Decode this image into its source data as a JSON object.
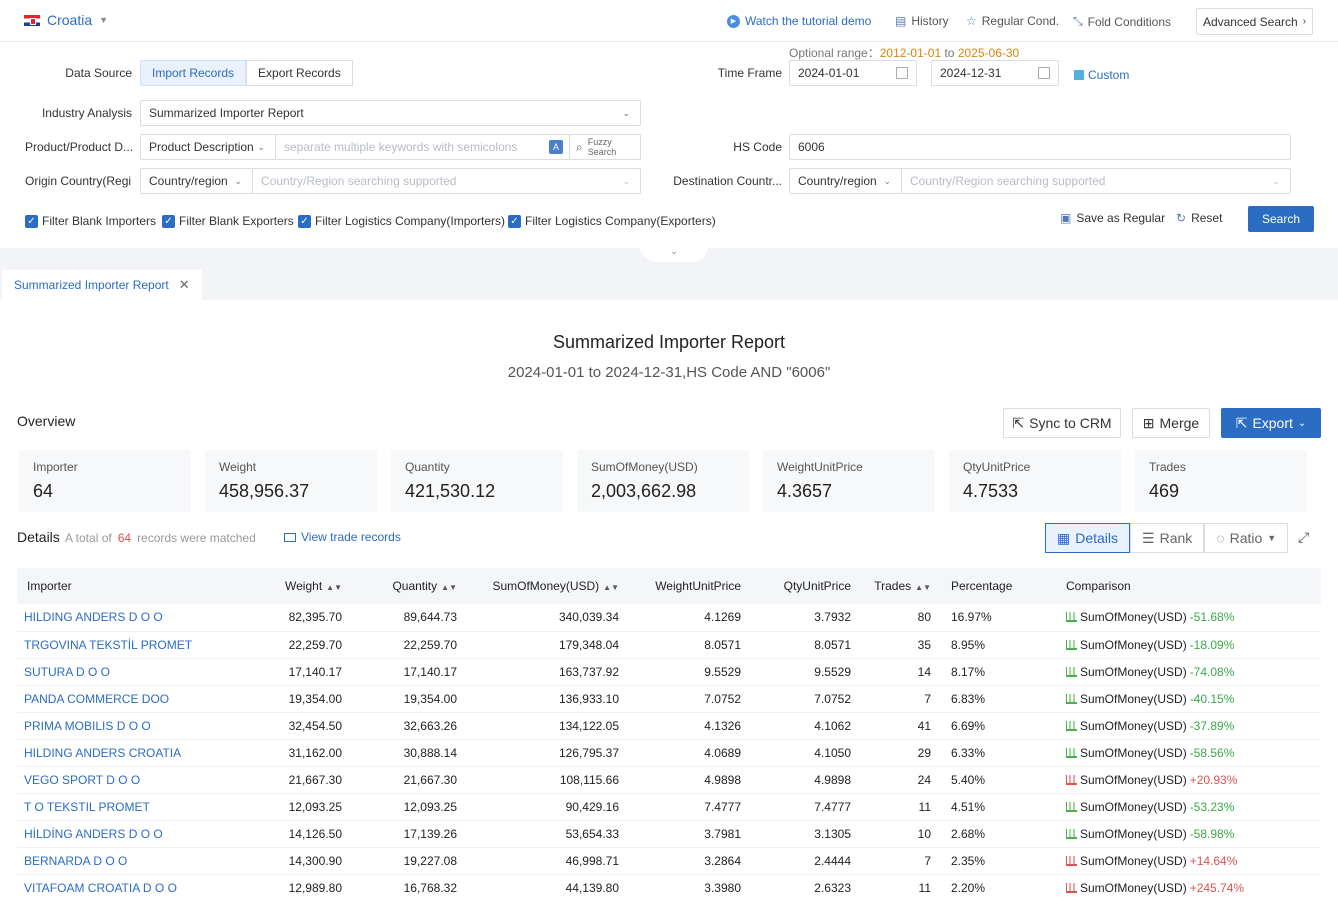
{
  "topbar": {
    "country": "Croatia",
    "tutorial": "Watch the tutorial demo",
    "history": "History",
    "regular": "Regular Cond.",
    "fold": "Fold Conditions",
    "advanced": "Advanced Search"
  },
  "filters": {
    "data_source_label": "Data Source",
    "import_records": "Import Records",
    "export_records": "Export Records",
    "optional_range_label": "Optional range：",
    "optional_from": "2012-01-01",
    "optional_to_word": "to",
    "optional_to": "2025-06-30",
    "time_frame_label": "Time Frame",
    "date_from": "2024-01-01",
    "date_to": "2024-12-31",
    "custom": "Custom",
    "industry_label": "Industry Analysis",
    "industry_value": "Summarized Importer Report",
    "product_label": "Product/Product D...",
    "product_type": "Product Description",
    "product_placeholder": "separate multiple keywords with semicolons",
    "fuzzy": "Fuzzy",
    "fuzzy2": "Search",
    "hs_label": "HS Code",
    "hs_value": "6006",
    "origin_label": "Origin Country(Regi...",
    "origin_type": "Country/region",
    "origin_placeholder": "Country/Region searching supported",
    "dest_label": "Destination Countr...",
    "dest_type": "Country/region",
    "dest_placeholder": "Country/Region searching supported",
    "checks": [
      "Filter Blank Importers",
      "Filter Blank Exporters",
      "Filter Logistics Company(Importers)",
      "Filter Logistics Company(Exporters)"
    ],
    "save_regular": "Save as Regular",
    "reset": "Reset",
    "search": "Search"
  },
  "report_tab": "Summarized Importer Report",
  "report": {
    "title": "Summarized Importer Report",
    "subtitle": "2024-01-01 to 2024-12-31,HS Code AND \"6006\"",
    "overview": "Overview",
    "sync": "Sync to CRM",
    "merge": "Merge",
    "export": "Export",
    "stats": [
      {
        "k": "Importer",
        "v": "64"
      },
      {
        "k": "Weight",
        "v": "458,956.37"
      },
      {
        "k": "Quantity",
        "v": "421,530.12"
      },
      {
        "k": "SumOfMoney(USD)",
        "v": "2,003,662.98"
      },
      {
        "k": "WeightUnitPrice",
        "v": "4.3657"
      },
      {
        "k": "QtyUnitPrice",
        "v": "4.7533"
      },
      {
        "k": "Trades",
        "v": "469"
      }
    ],
    "details": "Details",
    "total_of": "A total of",
    "total_count": "64",
    "records_matched": "records were matched",
    "view_trade": "View trade records",
    "view_details": "Details",
    "view_rank": "Rank",
    "view_ratio": "Ratio"
  },
  "table": {
    "headers": [
      "Importer",
      "Weight",
      "Quantity",
      "SumOfMoney(USD)",
      "WeightUnitPrice",
      "QtyUnitPrice",
      "Trades",
      "Percentage",
      "Comparison"
    ],
    "rows": [
      {
        "importer": "HILDING ANDERS D O O",
        "weight": "82,395.70",
        "qty": "89,644.73",
        "money": "340,039.34",
        "wup": "4.1269",
        "qup": "3.7932",
        "trades": "80",
        "pct": "16.97%",
        "cmp_label": "SumOfMoney(USD)",
        "cmp": "-51.68%",
        "dir": "down"
      },
      {
        "importer": "TRGOVINA TEKSTİL PROMET",
        "weight": "22,259.70",
        "qty": "22,259.70",
        "money": "179,348.04",
        "wup": "8.0571",
        "qup": "8.0571",
        "trades": "35",
        "pct": "8.95%",
        "cmp_label": "SumOfMoney(USD)",
        "cmp": "-18.09%",
        "dir": "down"
      },
      {
        "importer": "SUTURA D O O",
        "weight": "17,140.17",
        "qty": "17,140.17",
        "money": "163,737.92",
        "wup": "9.5529",
        "qup": "9.5529",
        "trades": "14",
        "pct": "8.17%",
        "cmp_label": "SumOfMoney(USD)",
        "cmp": "-74.08%",
        "dir": "down"
      },
      {
        "importer": "PANDA COMMERCE DOO",
        "weight": "19,354.00",
        "qty": "19,354.00",
        "money": "136,933.10",
        "wup": "7.0752",
        "qup": "7.0752",
        "trades": "7",
        "pct": "6.83%",
        "cmp_label": "SumOfMoney(USD)",
        "cmp": "-40.15%",
        "dir": "down"
      },
      {
        "importer": "PRIMA MOBILIS D O O",
        "weight": "32,454.50",
        "qty": "32,663.26",
        "money": "134,122.05",
        "wup": "4.1326",
        "qup": "4.1062",
        "trades": "41",
        "pct": "6.69%",
        "cmp_label": "SumOfMoney(USD)",
        "cmp": "-37.89%",
        "dir": "down"
      },
      {
        "importer": "HILDING ANDERS CROATIA",
        "weight": "31,162.00",
        "qty": "30,888.14",
        "money": "126,795.37",
        "wup": "4.0689",
        "qup": "4.1050",
        "trades": "29",
        "pct": "6.33%",
        "cmp_label": "SumOfMoney(USD)",
        "cmp": "-58.56%",
        "dir": "down"
      },
      {
        "importer": "VEGO SPORT D O O",
        "weight": "21,667.30",
        "qty": "21,667.30",
        "money": "108,115.66",
        "wup": "4.9898",
        "qup": "4.9898",
        "trades": "24",
        "pct": "5.40%",
        "cmp_label": "SumOfMoney(USD)",
        "cmp": "+20.93%",
        "dir": "up"
      },
      {
        "importer": "T O TEKSTIL PROMET",
        "weight": "12,093.25",
        "qty": "12,093.25",
        "money": "90,429.16",
        "wup": "7.4777",
        "qup": "7.4777",
        "trades": "11",
        "pct": "4.51%",
        "cmp_label": "SumOfMoney(USD)",
        "cmp": "-53.23%",
        "dir": "down"
      },
      {
        "importer": "HİLDİNG ANDERS D O O",
        "weight": "14,126.50",
        "qty": "17,139.26",
        "money": "53,654.33",
        "wup": "3.7981",
        "qup": "3.1305",
        "trades": "10",
        "pct": "2.68%",
        "cmp_label": "SumOfMoney(USD)",
        "cmp": "-58.98%",
        "dir": "down"
      },
      {
        "importer": "BERNARDA D O O",
        "weight": "14,300.90",
        "qty": "19,227.08",
        "money": "46,998.71",
        "wup": "3.2864",
        "qup": "2.4444",
        "trades": "7",
        "pct": "2.35%",
        "cmp_label": "SumOfMoney(USD)",
        "cmp": "+14.64%",
        "dir": "up"
      },
      {
        "importer": "VITAFOAM CROATIA D O O",
        "weight": "12,989.80",
        "qty": "16,768.32",
        "money": "44,139.80",
        "wup": "3.3980",
        "qup": "2.6323",
        "trades": "11",
        "pct": "2.20%",
        "cmp_label": "SumOfMoney(USD)",
        "cmp": "+245.74%",
        "dir": "up"
      }
    ]
  },
  "colors": {
    "accent": "#2b6cc4",
    "down": "#3aa84a",
    "up": "#d9534f",
    "range_date": "#d4880f"
  }
}
